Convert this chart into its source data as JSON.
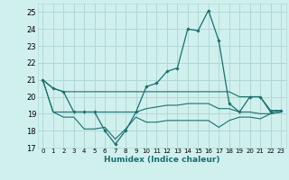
{
  "xlabel": "Humidex (Indice chaleur)",
  "bg_color": "#d0f0ee",
  "grid_color": "#b0d8d5",
  "line_color": "#1a6e6e",
  "xlim": [
    -0.5,
    23.5
  ],
  "ylim": [
    17,
    25.5
  ],
  "yticks": [
    17,
    18,
    19,
    20,
    21,
    22,
    23,
    24,
    25
  ],
  "xticks": [
    0,
    1,
    2,
    3,
    4,
    5,
    6,
    7,
    8,
    9,
    10,
    11,
    12,
    13,
    14,
    15,
    16,
    17,
    18,
    19,
    20,
    21,
    22,
    23
  ],
  "series_main": [
    21.0,
    20.5,
    20.3,
    19.1,
    19.1,
    19.1,
    18.0,
    17.2,
    18.0,
    19.1,
    20.6,
    20.8,
    21.5,
    21.7,
    24.0,
    23.9,
    25.1,
    23.3,
    19.6,
    19.1,
    20.0,
    20.0,
    19.1,
    19.2
  ],
  "series_upper": [
    21.0,
    20.5,
    20.3,
    20.3,
    20.3,
    20.3,
    20.3,
    20.3,
    20.3,
    20.3,
    20.3,
    20.3,
    20.3,
    20.3,
    20.3,
    20.3,
    20.3,
    20.3,
    20.3,
    20.0,
    20.0,
    20.0,
    19.2,
    19.2
  ],
  "series_mid": [
    21.0,
    19.1,
    19.1,
    19.1,
    19.1,
    19.1,
    19.1,
    19.1,
    19.1,
    19.1,
    19.3,
    19.4,
    19.5,
    19.5,
    19.6,
    19.6,
    19.6,
    19.3,
    19.3,
    19.1,
    19.1,
    19.0,
    19.0,
    19.1
  ],
  "series_lower": [
    21.0,
    19.1,
    18.8,
    18.8,
    18.1,
    18.1,
    18.2,
    17.5,
    18.1,
    18.8,
    18.5,
    18.5,
    18.6,
    18.6,
    18.6,
    18.6,
    18.6,
    18.2,
    18.6,
    18.8,
    18.8,
    18.7,
    19.0,
    19.1
  ]
}
